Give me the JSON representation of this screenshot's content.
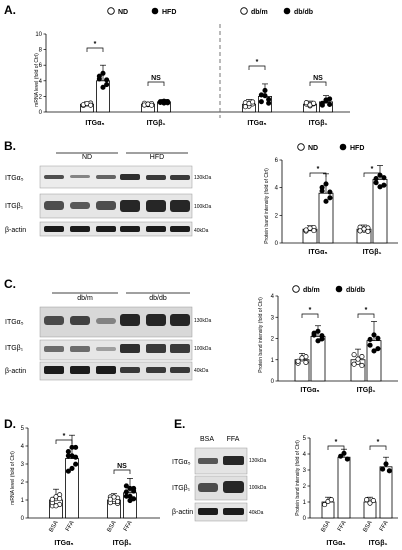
{
  "panels": {
    "A": "A.",
    "B": "B.",
    "C": "C.",
    "D": "D.",
    "E": "E."
  },
  "legend": {
    "nd": "ND",
    "hfd": "HFD",
    "dbm": "db/m",
    "dbdb": "db/db"
  },
  "axes": {
    "mrna": "mRNA level (fold of Ctrl)",
    "protein": "Protein band intensity (fold of Ctrl)"
  },
  "groups": {
    "itga5": "ITGα₅",
    "itgb1": "ITGβ₁"
  },
  "blot": {
    "itga5": "ITGα₅",
    "itgb1": "ITGβ₁",
    "actin": "β-actin",
    "kda130": "130kDa",
    "kda100": "100kDa",
    "kda40": "40kDa",
    "bsa": "BSA",
    "ffa": "FFA"
  },
  "sig": {
    "star": "*",
    "ns": "NS"
  },
  "colors": {
    "open": "#ffffff",
    "filled": "#000000",
    "bar": "#ffffff"
  },
  "chart_data": [
    {
      "panel": "A",
      "type": "bar",
      "ylabel": "mRNA level (fold of Ctrl)",
      "ylim": [
        0,
        10
      ],
      "yticks": [
        0,
        2,
        4,
        6,
        8,
        10
      ],
      "categories": [
        "ITGα₅",
        "ITGβ₁",
        "ITGα₅",
        "ITGβ₁"
      ],
      "series": [
        {
          "name": "ND",
          "values": [
            1.0,
            1.0,
            null,
            null
          ]
        },
        {
          "name": "HFD",
          "values": [
            4.0,
            1.3,
            null,
            null
          ]
        },
        {
          "name": "db/m",
          "values": [
            null,
            null,
            1.0,
            1.0
          ]
        },
        {
          "name": "db/db",
          "values": [
            null,
            null,
            2.0,
            1.3
          ]
        }
      ],
      "significance": [
        "*",
        "NS",
        "*",
        "NS"
      ]
    },
    {
      "panel": "B",
      "type": "bar",
      "ylabel": "Protein band intensity (fold of Ctrl)",
      "ylim": [
        0,
        6
      ],
      "yticks": [
        0,
        2,
        4,
        6
      ],
      "categories": [
        "ITGα₅",
        "ITGβ₁"
      ],
      "series": [
        {
          "name": "ND",
          "values": [
            1.0,
            1.0
          ]
        },
        {
          "name": "HFD",
          "values": [
            3.6,
            4.6
          ]
        }
      ],
      "significance": [
        "*",
        "*"
      ]
    },
    {
      "panel": "C",
      "type": "bar",
      "ylabel": "Protein band intensity (fold of Ctrl)",
      "ylim": [
        0,
        4
      ],
      "yticks": [
        0,
        1,
        2,
        3,
        4
      ],
      "categories": [
        "ITGα₅",
        "ITGβ₁"
      ],
      "series": [
        {
          "name": "db/m",
          "values": [
            1.0,
            1.0
          ]
        },
        {
          "name": "db/db",
          "values": [
            2.1,
            1.9
          ]
        }
      ],
      "significance": [
        "*",
        "*"
      ]
    },
    {
      "panel": "D",
      "type": "bar",
      "ylabel": "mRNA level (fold of Ctrl)",
      "ylim": [
        0,
        5
      ],
      "yticks": [
        0,
        1,
        2,
        3,
        4,
        5
      ],
      "categories": [
        "ITGα₅",
        "ITGβ₁"
      ],
      "series": [
        {
          "name": "BSA",
          "values": [
            1.0,
            1.0
          ]
        },
        {
          "name": "FFA",
          "values": [
            3.3,
            1.4
          ]
        }
      ],
      "significance": [
        "*",
        "NS"
      ]
    },
    {
      "panel": "E",
      "type": "bar",
      "ylabel": "Protein band intensity (fold of Ctrl)",
      "ylim": [
        0,
        5
      ],
      "yticks": [
        0,
        1,
        2,
        3,
        4,
        5
      ],
      "categories": [
        "ITGα₅",
        "ITGβ₁"
      ],
      "series": [
        {
          "name": "BSA",
          "values": [
            1.0,
            1.0
          ]
        },
        {
          "name": "FFA",
          "values": [
            3.8,
            3.2
          ]
        }
      ],
      "significance": [
        "*",
        "*"
      ]
    }
  ]
}
